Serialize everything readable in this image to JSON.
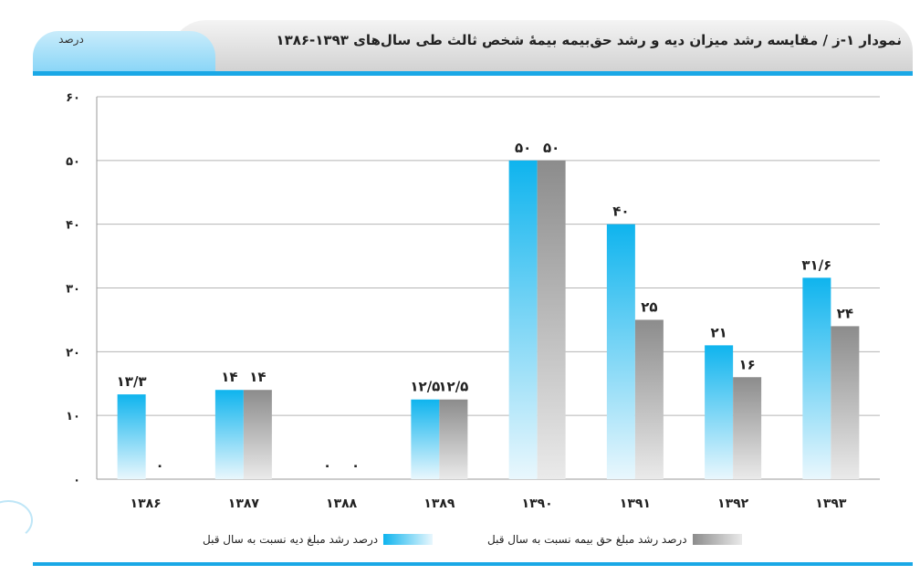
{
  "header": {
    "title": "نمودار ۱-ز / مقایسه رشد میزان دیه و رشد حق‌بیمه بیمهٔ شخص ثالث طی سال‌های ۱۳۹۳-۱۳۸۶",
    "unit_label": "درصد"
  },
  "colors": {
    "series_1": "#11b6ee",
    "series_2": "#8a8a8a",
    "accent_line": "#1aa8e6"
  },
  "chart_data": {
    "type": "bar",
    "title": "نمودار ۱-ز / مقایسه رشد میزان دیه و رشد حق‌بیمه بیمهٔ شخص ثالث طی سال‌های ۱۳۹۳-۱۳۸۶",
    "ylabel": "درصد",
    "xlabel": "",
    "ylim": [
      0,
      60
    ],
    "yticks": [
      0,
      10,
      20,
      30,
      40,
      50,
      60
    ],
    "ytick_labels": [
      "۰",
      "۱۰",
      "۲۰",
      "۳۰",
      "۴۰",
      "۵۰",
      "۶۰"
    ],
    "grid": true,
    "legend_position": "bottom",
    "categories": [
      "۱۳۸۶",
      "۱۳۸۷",
      "۱۳۸۸",
      "۱۳۸۹",
      "۱۳۹۰",
      "۱۳۹۱",
      "۱۳۹۲",
      "۱۳۹۳"
    ],
    "series": [
      {
        "name": "درصد رشد مبلغ دیه نسبت به سال قبل",
        "values": [
          13.3,
          14,
          0,
          12.5,
          50,
          40,
          21,
          31.6
        ],
        "labels": [
          "۱۳/۳",
          "۱۴",
          "۰",
          "۱۲/۵",
          "۵۰",
          "۴۰",
          "۲۱",
          "۳۱/۶"
        ]
      },
      {
        "name": "درصد رشد مبلغ حق بیمه نسبت به سال قبل",
        "values": [
          0,
          14,
          0,
          12.5,
          50,
          25,
          16,
          24
        ],
        "labels": [
          "۰",
          "۱۴",
          "۰",
          "۱۲/۵",
          "۵۰",
          "۲۵",
          "۱۶",
          "۲۴"
        ]
      }
    ]
  }
}
